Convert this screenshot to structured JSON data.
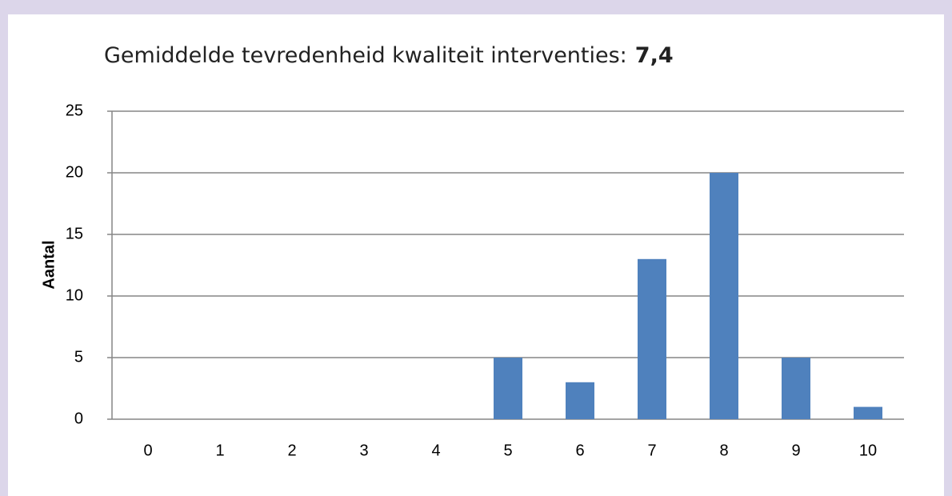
{
  "chart_data": {
    "type": "bar",
    "title": "Gemiddelde tevredenheid kwaliteit interventies:",
    "title_value": "7,4",
    "y_label": "Aantal",
    "categories": [
      "0",
      "1",
      "2",
      "3",
      "4",
      "5",
      "6",
      "7",
      "8",
      "9",
      "10"
    ],
    "values": [
      0,
      0,
      0,
      0,
      0,
      5,
      3,
      13,
      20,
      5,
      1
    ],
    "color": "#4f81bd",
    "ylim": [
      0,
      25
    ],
    "yticks": [
      0,
      5,
      10,
      15,
      20,
      25
    ],
    "grid": true
  }
}
